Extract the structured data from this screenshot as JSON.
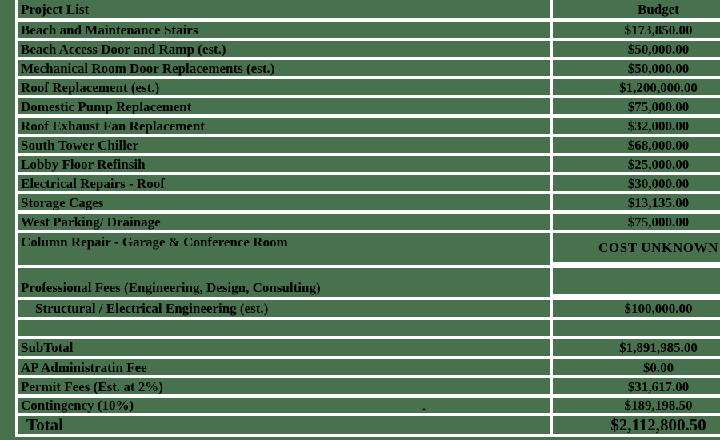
{
  "header": {
    "project": "Project List",
    "budget": "Budget"
  },
  "rows": [
    {
      "name": "Beach and Maintenance Stairs",
      "budget": "$173,850.00"
    },
    {
      "name": "Beach Access Door and Ramp (est.)",
      "budget": "$50,000.00"
    },
    {
      "name": "Mechanical Room Door Replacements (est.)",
      "budget": "$50,000.00"
    },
    {
      "name": "Roof Replacement (est.)",
      "budget": "$1,200,000.00"
    },
    {
      "name": "Domestic Pump Replacement",
      "budget": "$75,000.00"
    },
    {
      "name": "Roof Exhaust Fan Replacement",
      "budget": "$32,000.00"
    },
    {
      "name": "South Tower Chiller",
      "budget": "$68,000.00"
    },
    {
      "name": "Lobby Floor Refinsih",
      "budget": "$25,000.00"
    },
    {
      "name": "Electrical Repairs - Roof",
      "budget": "$30,000.00"
    },
    {
      "name": "Storage Cages",
      "budget": "$13,135.00"
    },
    {
      "name": "West Parking/ Drainage",
      "budget": "$75,000.00"
    },
    {
      "name": "Column Repair - Garage & Conference Room",
      "budget": "COST UNKNOWN"
    },
    {
      "name": "Professional Fees (Engineering, Design, Consulting)",
      "budget": ""
    },
    {
      "name": "Structural / Electrical Engineering (est.)",
      "budget": "$100,000.00"
    },
    {
      "name": "",
      "budget": ""
    },
    {
      "name": "SubTotal",
      "budget": "$1,891,985.00"
    },
    {
      "name": "AP Administratin Fee",
      "budget": "$0.00"
    },
    {
      "name": "Permit Fees (Est. at 2%)",
      "budget": "$31,617.00"
    },
    {
      "name": "Contingency (10%)",
      "budget": "$189,198.50"
    },
    {
      "name": "Total",
      "budget": "$2,112,800.50"
    }
  ],
  "stray_mark": ".",
  "colors": {
    "cell_background": "#48714e",
    "gridline": "#ffffff",
    "text": "#000000"
  }
}
